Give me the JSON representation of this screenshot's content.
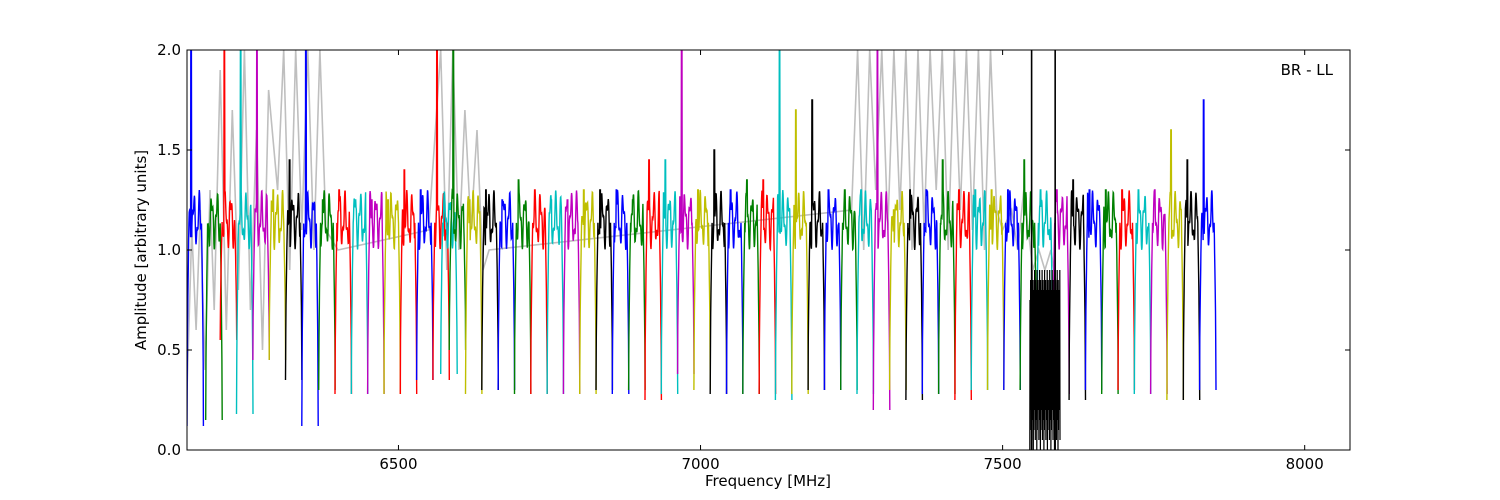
{
  "chart_data": {
    "type": "line",
    "title": "",
    "annotation": "BR - LL",
    "xlabel": "Frequency [MHz]",
    "ylabel": "Amplitude [arbitrary units]",
    "xlim": [
      6150,
      8075
    ],
    "ylim": [
      0.0,
      2.0
    ],
    "xticks": [
      6500,
      7000,
      7500,
      8000
    ],
    "xtick_labels": [
      "6500",
      "7000",
      "7500",
      "8000"
    ],
    "yticks": [
      0.0,
      0.5,
      1.0,
      1.5,
      2.0
    ],
    "ytick_labels": [
      "0.0",
      "0.5",
      "1.0",
      "1.5",
      "2.0"
    ],
    "grid": false,
    "background_series": {
      "color": "#bfbfbf",
      "x": [
        6150,
        6158,
        6165,
        6172,
        6180,
        6188,
        6195,
        6205,
        6215,
        6225,
        6235,
        6245,
        6255,
        6265,
        6275,
        6285,
        6300,
        6310,
        6320,
        6330,
        6340,
        6350,
        6360,
        6370,
        6380,
        6400,
        6550,
        6570,
        6580,
        6590,
        6600,
        6610,
        6620,
        6630,
        6640,
        6650,
        7250,
        7260,
        7270,
        7280,
        7290,
        7300,
        7310,
        7320,
        7330,
        7340,
        7350,
        7360,
        7370,
        7380,
        7390,
        7400,
        7410,
        7420,
        7430,
        7440,
        7450,
        7460,
        7470,
        7480,
        7490,
        7500,
        7515,
        7525,
        7535,
        7550,
        7560,
        7570,
        7580,
        7590
      ],
      "values": [
        0.3,
        1.1,
        0.6,
        1.2,
        0.4,
        1.3,
        0.7,
        1.9,
        0.6,
        1.7,
        0.8,
        2.0,
        0.7,
        1.6,
        0.5,
        1.8,
        1.3,
        2.0,
        0.9,
        2.0,
        1.1,
        2.0,
        1.0,
        2.0,
        1.1,
        1.0,
        1.1,
        2.0,
        0.9,
        2.0,
        1.0,
        1.7,
        1.1,
        1.6,
        0.9,
        1.0,
        1.2,
        2.0,
        1.0,
        2.0,
        1.3,
        2.0,
        1.1,
        2.0,
        1.2,
        2.0,
        1.0,
        2.0,
        1.1,
        2.0,
        1.3,
        2.0,
        1.0,
        2.0,
        1.2,
        2.0,
        1.1,
        2.0,
        1.0,
        2.0,
        1.2,
        1.1,
        1.2,
        1.0,
        1.3,
        0.9,
        1.0,
        0.9,
        1.0,
        0.8
      ]
    },
    "segment_width_mhz": 27.2,
    "series": [
      {
        "color": "#0000ff",
        "x0": 6150,
        "peak": 2.0,
        "trough": 0.12
      },
      {
        "color": "#008000",
        "x0": 6181,
        "peak": 0.9,
        "trough": 0.15
      },
      {
        "color": "#ff0000",
        "x0": 6205,
        "peak": 2.0,
        "trough": 0.55
      },
      {
        "color": "#00bfbf",
        "x0": 6232,
        "peak": 2.0,
        "trough": 0.18
      },
      {
        "color": "#bf00bf",
        "x0": 6259,
        "peak": 2.0,
        "trough": 0.45
      },
      {
        "color": "#bfbf00",
        "x0": 6286,
        "peak": 1.3,
        "trough": 0.45
      },
      {
        "color": "#000000",
        "x0": 6313,
        "peak": 1.45,
        "trough": 0.35
      },
      {
        "color": "#0000ff",
        "x0": 6340,
        "peak": 2.0,
        "trough": 0.12
      },
      {
        "color": "#008000",
        "x0": 6368,
        "peak": 1.25,
        "trough": 0.3
      },
      {
        "color": "#ff0000",
        "x0": 6395,
        "peak": 1.3,
        "trough": 0.28
      },
      {
        "color": "#00bfbf",
        "x0": 6422,
        "peak": 1.25,
        "trough": 0.28
      },
      {
        "color": "#bf00bf",
        "x0": 6449,
        "peak": 1.25,
        "trough": 0.28
      },
      {
        "color": "#bfbf00",
        "x0": 6476,
        "peak": 1.25,
        "trough": 0.28
      },
      {
        "color": "#ff0000",
        "x0": 6503,
        "peak": 1.4,
        "trough": 0.28
      },
      {
        "color": "#0000ff",
        "x0": 6530,
        "peak": 1.3,
        "trough": 0.35
      },
      {
        "color": "#ff0000",
        "x0": 6557,
        "peak": 2.0,
        "trough": 0.35
      },
      {
        "color": "#00bfbf",
        "x0": 6570,
        "peak": 1.0,
        "trough": 0.38
      },
      {
        "color": "#008000",
        "x0": 6584,
        "peak": 2.0,
        "trough": 0.5
      },
      {
        "color": "#bfbf00",
        "x0": 6611,
        "peak": 1.25,
        "trough": 0.28
      },
      {
        "color": "#000000",
        "x0": 6638,
        "peak": 1.3,
        "trough": 0.3
      },
      {
        "color": "#0000ff",
        "x0": 6665,
        "peak": 1.25,
        "trough": 0.3
      },
      {
        "color": "#008000",
        "x0": 6692,
        "peak": 1.35,
        "trough": 0.28
      },
      {
        "color": "#ff0000",
        "x0": 6719,
        "peak": 1.3,
        "trough": 0.28
      },
      {
        "color": "#00bfbf",
        "x0": 6746,
        "peak": 1.25,
        "trough": 0.28
      },
      {
        "color": "#bf00bf",
        "x0": 6773,
        "peak": 1.25,
        "trough": 0.28
      },
      {
        "color": "#bfbf00",
        "x0": 6800,
        "peak": 1.3,
        "trough": 0.28
      },
      {
        "color": "#000000",
        "x0": 6827,
        "peak": 1.3,
        "trough": 0.3
      },
      {
        "color": "#0000ff",
        "x0": 6854,
        "peak": 1.3,
        "trough": 0.28
      },
      {
        "color": "#008000",
        "x0": 6881,
        "peak": 1.25,
        "trough": 0.3
      },
      {
        "color": "#ff0000",
        "x0": 6908,
        "peak": 1.45,
        "trough": 0.25
      },
      {
        "color": "#00bfbf",
        "x0": 6935,
        "peak": 1.45,
        "trough": 0.28
      },
      {
        "color": "#bf00bf",
        "x0": 6962,
        "peak": 2.0,
        "trough": 0.38
      },
      {
        "color": "#bfbf00",
        "x0": 6989,
        "peak": 1.3,
        "trough": 0.3
      },
      {
        "color": "#000000",
        "x0": 7016,
        "peak": 1.5,
        "trough": 0.28
      },
      {
        "color": "#0000ff",
        "x0": 7043,
        "peak": 1.3,
        "trough": 0.28
      },
      {
        "color": "#008000",
        "x0": 7070,
        "peak": 1.35,
        "trough": 0.28
      },
      {
        "color": "#ff0000",
        "x0": 7097,
        "peak": 1.35,
        "trough": 0.28
      },
      {
        "color": "#00bfbf",
        "x0": 7124,
        "peak": 2.0,
        "trough": 0.25
      },
      {
        "color": "#bfbf00",
        "x0": 7151,
        "peak": 1.7,
        "trough": 0.28
      },
      {
        "color": "#000000",
        "x0": 7178,
        "peak": 1.75,
        "trough": 0.3
      },
      {
        "color": "#0000ff",
        "x0": 7205,
        "peak": 1.3,
        "trough": 0.3
      },
      {
        "color": "#008000",
        "x0": 7232,
        "peak": 1.3,
        "trough": 0.3
      },
      {
        "color": "#00bfbf",
        "x0": 7259,
        "peak": 1.3,
        "trough": 0.28
      },
      {
        "color": "#bf00bf",
        "x0": 7286,
        "peak": 2.0,
        "trough": 0.2
      },
      {
        "color": "#bfbf00",
        "x0": 7313,
        "peak": 1.2,
        "trough": 0.3
      },
      {
        "color": "#000000",
        "x0": 7340,
        "peak": 1.3,
        "trough": 0.25
      },
      {
        "color": "#0000ff",
        "x0": 7367,
        "peak": 1.3,
        "trough": 0.28
      },
      {
        "color": "#008000",
        "x0": 7394,
        "peak": 1.45,
        "trough": 0.28
      },
      {
        "color": "#ff0000",
        "x0": 7421,
        "peak": 1.3,
        "trough": 0.25
      },
      {
        "color": "#00bfbf",
        "x0": 7448,
        "peak": 1.3,
        "trough": 0.3
      },
      {
        "color": "#bfbf00",
        "x0": 7475,
        "peak": 1.3,
        "trough": 0.3
      },
      {
        "color": "#0000ff",
        "x0": 7502,
        "peak": 1.3,
        "trough": 0.3
      },
      {
        "color": "#008000",
        "x0": 7529,
        "peak": 1.45,
        "trough": 0.3
      },
      {
        "color": "#00bfbf",
        "x0": 7556,
        "peak": 1.3,
        "trough": 0.28
      },
      {
        "color": "#bf00bf",
        "x0": 7583,
        "peak": 1.3,
        "trough": 0.28
      },
      {
        "color": "#000000",
        "x0": 7610,
        "peak": 1.35,
        "trough": 0.25
      },
      {
        "color": "#0000ff",
        "x0": 7637,
        "peak": 1.3,
        "trough": 0.3
      },
      {
        "color": "#008000",
        "x0": 7664,
        "peak": 1.3,
        "trough": 0.28
      },
      {
        "color": "#ff0000",
        "x0": 7691,
        "peak": 1.3,
        "trough": 0.3
      },
      {
        "color": "#00bfbf",
        "x0": 7718,
        "peak": 1.3,
        "trough": 0.28
      },
      {
        "color": "#bf00bf",
        "x0": 7745,
        "peak": 1.3,
        "trough": 0.28
      },
      {
        "color": "#bfbf00",
        "x0": 7772,
        "peak": 1.6,
        "trough": 0.25
      },
      {
        "color": "#000000",
        "x0": 7799,
        "peak": 1.45,
        "trough": 0.25
      },
      {
        "color": "#0000ff",
        "x0": 7826,
        "peak": 1.75,
        "trough": 0.3
      }
    ],
    "rfi_band": {
      "color": "#000000",
      "x": [
        7545,
        7595
      ],
      "baseline": 1.1,
      "low": 0.0,
      "high": 2.0
    }
  }
}
